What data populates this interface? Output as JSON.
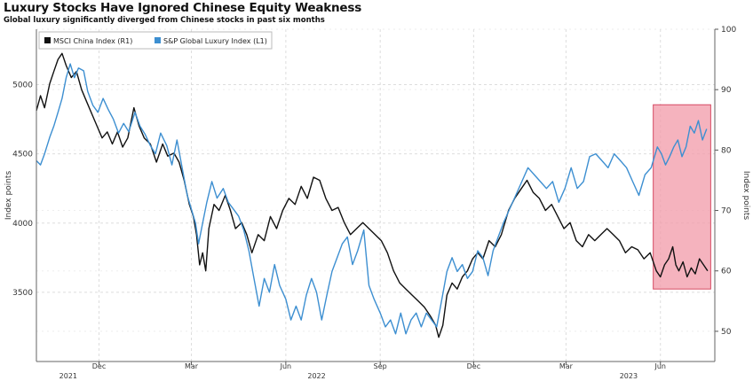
{
  "title": "Luxury Stocks Have Ignored Chinese Equity Weakness",
  "subtitle": "Global luxury significantly diverged from Chinese stocks in past six months",
  "colors": {
    "msci": "#111111",
    "luxury": "#3d8fd1",
    "highlight": "#f19aa8",
    "highlight_border": "#d64a63",
    "grid": "#dddddd"
  },
  "chart_data": {
    "type": "line",
    "grid": true,
    "legend": {
      "placement": "top-left",
      "entries": [
        "MSCI China Index  (R1)",
        "S&P Global Luxury Index  (L1)"
      ]
    },
    "y_left": {
      "label": "Index points",
      "range": [
        3000,
        5400
      ],
      "ticks": [
        "5000",
        "4500",
        "4000",
        "3500"
      ],
      "tick_values": [
        5000,
        4500,
        4000,
        3500
      ]
    },
    "y_right": {
      "label": "Index points",
      "range": [
        45,
        100
      ],
      "ticks": [
        "100",
        "90",
        "80",
        "70",
        "60",
        "50"
      ],
      "tick_values": [
        100,
        90,
        80,
        70,
        60,
        50
      ]
    },
    "x": {
      "range": [
        "2021-10-01",
        "2023-07-24"
      ],
      "month_ticks": [
        {
          "label": "Dec",
          "date": "2021-12-01"
        },
        {
          "label": "Mar",
          "date": "2022-03-01"
        },
        {
          "label": "Jun",
          "date": "2022-06-01"
        },
        {
          "label": "Sep",
          "date": "2022-09-01"
        },
        {
          "label": "Dec",
          "date": "2022-12-01"
        },
        {
          "label": "Mar",
          "date": "2023-03-01"
        },
        {
          "label": "Jun",
          "date": "2023-06-01"
        }
      ],
      "year_ticks": [
        {
          "label": "2021",
          "date": "2021-11-01"
        },
        {
          "label": "2022",
          "date": "2022-07-01"
        },
        {
          "label": "2023",
          "date": "2023-05-01"
        }
      ]
    },
    "highlight": {
      "x_start": "2023-05-25",
      "x_end": "2023-07-20",
      "y_bottom": 57,
      "y_top": 87.5
    },
    "series": [
      {
        "name": "MSCI China Index (R1)",
        "axis": "right",
        "color_key": "msci",
        "points": [
          [
            "2021-10-01",
            86.5
          ],
          [
            "2021-10-05",
            89
          ],
          [
            "2021-10-09",
            87
          ],
          [
            "2021-10-14",
            91
          ],
          [
            "2021-10-18",
            93
          ],
          [
            "2021-10-22",
            95
          ],
          [
            "2021-10-26",
            96
          ],
          [
            "2021-10-30",
            94
          ],
          [
            "2021-11-04",
            92
          ],
          [
            "2021-11-09",
            93
          ],
          [
            "2021-11-14",
            90
          ],
          [
            "2021-11-19",
            88
          ],
          [
            "2021-11-24",
            86
          ],
          [
            "2021-11-29",
            84
          ],
          [
            "2021-12-04",
            82
          ],
          [
            "2021-12-09",
            83
          ],
          [
            "2021-12-14",
            81
          ],
          [
            "2021-12-19",
            83
          ],
          [
            "2021-12-24",
            80.5
          ],
          [
            "2021-12-29",
            82
          ],
          [
            "2022-01-04",
            87
          ],
          [
            "2022-01-09",
            84
          ],
          [
            "2022-01-14",
            82
          ],
          [
            "2022-01-20",
            81
          ],
          [
            "2022-01-26",
            78
          ],
          [
            "2022-02-01",
            81
          ],
          [
            "2022-02-06",
            79
          ],
          [
            "2022-02-12",
            79.5
          ],
          [
            "2022-02-17",
            78
          ],
          [
            "2022-02-22",
            75
          ],
          [
            "2022-02-27",
            71
          ],
          [
            "2022-03-03",
            69
          ],
          [
            "2022-03-06",
            66
          ],
          [
            "2022-03-09",
            61
          ],
          [
            "2022-03-12",
            63
          ],
          [
            "2022-03-15",
            60
          ],
          [
            "2022-03-18",
            67
          ],
          [
            "2022-03-23",
            71
          ],
          [
            "2022-03-28",
            70
          ],
          [
            "2022-04-03",
            72.5
          ],
          [
            "2022-04-08",
            70
          ],
          [
            "2022-04-13",
            67
          ],
          [
            "2022-04-19",
            68
          ],
          [
            "2022-04-24",
            66
          ],
          [
            "2022-04-29",
            63
          ],
          [
            "2022-05-05",
            66
          ],
          [
            "2022-05-11",
            65
          ],
          [
            "2022-05-17",
            69
          ],
          [
            "2022-05-23",
            67
          ],
          [
            "2022-05-29",
            70
          ],
          [
            "2022-06-04",
            72
          ],
          [
            "2022-06-10",
            71
          ],
          [
            "2022-06-16",
            74
          ],
          [
            "2022-06-22",
            72
          ],
          [
            "2022-06-28",
            75.5
          ],
          [
            "2022-07-04",
            75
          ],
          [
            "2022-07-10",
            72
          ],
          [
            "2022-07-16",
            70
          ],
          [
            "2022-07-22",
            70.5
          ],
          [
            "2022-07-28",
            68
          ],
          [
            "2022-08-03",
            66
          ],
          [
            "2022-08-09",
            67
          ],
          [
            "2022-08-15",
            68
          ],
          [
            "2022-08-21",
            67
          ],
          [
            "2022-08-27",
            66
          ],
          [
            "2022-09-02",
            65
          ],
          [
            "2022-09-08",
            63
          ],
          [
            "2022-09-14",
            60
          ],
          [
            "2022-09-20",
            58
          ],
          [
            "2022-09-26",
            57
          ],
          [
            "2022-10-02",
            56
          ],
          [
            "2022-10-08",
            55
          ],
          [
            "2022-10-14",
            54
          ],
          [
            "2022-10-20",
            52.5
          ],
          [
            "2022-10-25",
            51
          ],
          [
            "2022-10-28",
            49
          ],
          [
            "2022-11-01",
            51
          ],
          [
            "2022-11-05",
            56
          ],
          [
            "2022-11-10",
            58
          ],
          [
            "2022-11-15",
            57
          ],
          [
            "2022-11-20",
            59
          ],
          [
            "2022-11-25",
            60
          ],
          [
            "2022-11-30",
            62
          ],
          [
            "2022-12-05",
            63
          ],
          [
            "2022-12-10",
            62
          ],
          [
            "2022-12-16",
            65
          ],
          [
            "2022-12-22",
            64
          ],
          [
            "2022-12-28",
            66
          ],
          [
            "2023-01-04",
            70
          ],
          [
            "2023-01-10",
            72
          ],
          [
            "2023-01-16",
            73.5
          ],
          [
            "2023-01-22",
            75
          ],
          [
            "2023-01-28",
            73
          ],
          [
            "2023-02-03",
            72
          ],
          [
            "2023-02-09",
            70
          ],
          [
            "2023-02-15",
            71
          ],
          [
            "2023-02-21",
            69
          ],
          [
            "2023-02-27",
            67
          ],
          [
            "2023-03-05",
            68
          ],
          [
            "2023-03-11",
            65
          ],
          [
            "2023-03-17",
            64
          ],
          [
            "2023-03-23",
            66
          ],
          [
            "2023-03-29",
            65
          ],
          [
            "2023-04-04",
            66
          ],
          [
            "2023-04-10",
            67
          ],
          [
            "2023-04-16",
            66
          ],
          [
            "2023-04-22",
            65
          ],
          [
            "2023-04-28",
            63
          ],
          [
            "2023-05-04",
            64
          ],
          [
            "2023-05-10",
            63.5
          ],
          [
            "2023-05-16",
            62
          ],
          [
            "2023-05-22",
            63
          ],
          [
            "2023-05-28",
            60
          ],
          [
            "2023-06-01",
            59
          ],
          [
            "2023-06-05",
            61
          ],
          [
            "2023-06-09",
            62
          ],
          [
            "2023-06-13",
            64
          ],
          [
            "2023-06-16",
            61
          ],
          [
            "2023-06-19",
            60
          ],
          [
            "2023-06-23",
            61.5
          ],
          [
            "2023-06-27",
            59
          ],
          [
            "2023-07-01",
            60.5
          ],
          [
            "2023-07-05",
            59.5
          ],
          [
            "2023-07-09",
            62
          ],
          [
            "2023-07-13",
            61
          ],
          [
            "2023-07-17",
            60
          ]
        ]
      },
      {
        "name": "S&P Global Luxury Index (L1)",
        "axis": "left",
        "color_key": "luxury",
        "points": [
          [
            "2021-10-01",
            4450
          ],
          [
            "2021-10-05",
            4420
          ],
          [
            "2021-10-09",
            4500
          ],
          [
            "2021-10-14",
            4620
          ],
          [
            "2021-10-18",
            4700
          ],
          [
            "2021-10-22",
            4800
          ],
          [
            "2021-10-26",
            4900
          ],
          [
            "2021-10-30",
            5050
          ],
          [
            "2021-11-03",
            5150
          ],
          [
            "2021-11-07",
            5050
          ],
          [
            "2021-11-11",
            5120
          ],
          [
            "2021-11-16",
            5100
          ],
          [
            "2021-11-20",
            4950
          ],
          [
            "2021-11-25",
            4850
          ],
          [
            "2021-11-30",
            4800
          ],
          [
            "2021-12-05",
            4900
          ],
          [
            "2021-12-10",
            4820
          ],
          [
            "2021-12-15",
            4750
          ],
          [
            "2021-12-20",
            4650
          ],
          [
            "2021-12-25",
            4720
          ],
          [
            "2021-12-30",
            4660
          ],
          [
            "2022-01-05",
            4800
          ],
          [
            "2022-01-10",
            4700
          ],
          [
            "2022-01-15",
            4640
          ],
          [
            "2022-01-20",
            4560
          ],
          [
            "2022-01-25",
            4500
          ],
          [
            "2022-01-30",
            4650
          ],
          [
            "2022-02-05",
            4560
          ],
          [
            "2022-02-10",
            4420
          ],
          [
            "2022-02-15",
            4600
          ],
          [
            "2022-02-20",
            4400
          ],
          [
            "2022-02-25",
            4200
          ],
          [
            "2022-03-01",
            4100
          ],
          [
            "2022-03-05",
            4000
          ],
          [
            "2022-03-08",
            3850
          ],
          [
            "2022-03-12",
            4000
          ],
          [
            "2022-03-16",
            4150
          ],
          [
            "2022-03-21",
            4300
          ],
          [
            "2022-03-26",
            4180
          ],
          [
            "2022-04-01",
            4250
          ],
          [
            "2022-04-06",
            4150
          ],
          [
            "2022-04-11",
            4100
          ],
          [
            "2022-04-16",
            4050
          ],
          [
            "2022-04-21",
            3950
          ],
          [
            "2022-04-26",
            3800
          ],
          [
            "2022-05-01",
            3600
          ],
          [
            "2022-05-06",
            3400
          ],
          [
            "2022-05-11",
            3600
          ],
          [
            "2022-05-16",
            3500
          ],
          [
            "2022-05-21",
            3700
          ],
          [
            "2022-05-26",
            3550
          ],
          [
            "2022-06-01",
            3450
          ],
          [
            "2022-06-06",
            3300
          ],
          [
            "2022-06-11",
            3400
          ],
          [
            "2022-06-16",
            3300
          ],
          [
            "2022-06-21",
            3480
          ],
          [
            "2022-06-26",
            3600
          ],
          [
            "2022-07-01",
            3500
          ],
          [
            "2022-07-06",
            3300
          ],
          [
            "2022-07-11",
            3480
          ],
          [
            "2022-07-16",
            3650
          ],
          [
            "2022-07-21",
            3750
          ],
          [
            "2022-07-26",
            3850
          ],
          [
            "2022-07-31",
            3900
          ],
          [
            "2022-08-05",
            3700
          ],
          [
            "2022-08-10",
            3800
          ],
          [
            "2022-08-16",
            3950
          ],
          [
            "2022-08-21",
            3550
          ],
          [
            "2022-08-26",
            3450
          ],
          [
            "2022-09-01",
            3350
          ],
          [
            "2022-09-06",
            3250
          ],
          [
            "2022-09-11",
            3300
          ],
          [
            "2022-09-16",
            3200
          ],
          [
            "2022-09-21",
            3350
          ],
          [
            "2022-09-26",
            3200
          ],
          [
            "2022-10-01",
            3300
          ],
          [
            "2022-10-06",
            3350
          ],
          [
            "2022-10-11",
            3250
          ],
          [
            "2022-10-16",
            3350
          ],
          [
            "2022-10-21",
            3300
          ],
          [
            "2022-10-26",
            3250
          ],
          [
            "2022-10-31",
            3450
          ],
          [
            "2022-11-05",
            3650
          ],
          [
            "2022-11-10",
            3750
          ],
          [
            "2022-11-15",
            3650
          ],
          [
            "2022-11-20",
            3700
          ],
          [
            "2022-11-25",
            3600
          ],
          [
            "2022-11-30",
            3650
          ],
          [
            "2022-12-05",
            3800
          ],
          [
            "2022-12-10",
            3750
          ],
          [
            "2022-12-15",
            3620
          ],
          [
            "2022-12-20",
            3800
          ],
          [
            "2022-12-25",
            3900
          ],
          [
            "2022-12-30",
            4000
          ],
          [
            "2023-01-05",
            4100
          ],
          [
            "2023-01-11",
            4200
          ],
          [
            "2023-01-17",
            4300
          ],
          [
            "2023-01-23",
            4400
          ],
          [
            "2023-01-29",
            4350
          ],
          [
            "2023-02-04",
            4300
          ],
          [
            "2023-02-10",
            4250
          ],
          [
            "2023-02-16",
            4300
          ],
          [
            "2023-02-22",
            4150
          ],
          [
            "2023-02-28",
            4250
          ],
          [
            "2023-03-06",
            4400
          ],
          [
            "2023-03-12",
            4250
          ],
          [
            "2023-03-18",
            4300
          ],
          [
            "2023-03-24",
            4480
          ],
          [
            "2023-03-30",
            4500
          ],
          [
            "2023-04-05",
            4450
          ],
          [
            "2023-04-11",
            4400
          ],
          [
            "2023-04-17",
            4500
          ],
          [
            "2023-04-23",
            4450
          ],
          [
            "2023-04-29",
            4400
          ],
          [
            "2023-05-05",
            4300
          ],
          [
            "2023-05-11",
            4200
          ],
          [
            "2023-05-17",
            4350
          ],
          [
            "2023-05-23",
            4400
          ],
          [
            "2023-05-29",
            4550
          ],
          [
            "2023-06-02",
            4500
          ],
          [
            "2023-06-06",
            4420
          ],
          [
            "2023-06-10",
            4480
          ],
          [
            "2023-06-14",
            4550
          ],
          [
            "2023-06-18",
            4600
          ],
          [
            "2023-06-22",
            4480
          ],
          [
            "2023-06-26",
            4550
          ],
          [
            "2023-06-30",
            4700
          ],
          [
            "2023-07-04",
            4650
          ],
          [
            "2023-07-08",
            4740
          ],
          [
            "2023-07-12",
            4600
          ],
          [
            "2023-07-16",
            4680
          ]
        ]
      }
    ]
  }
}
